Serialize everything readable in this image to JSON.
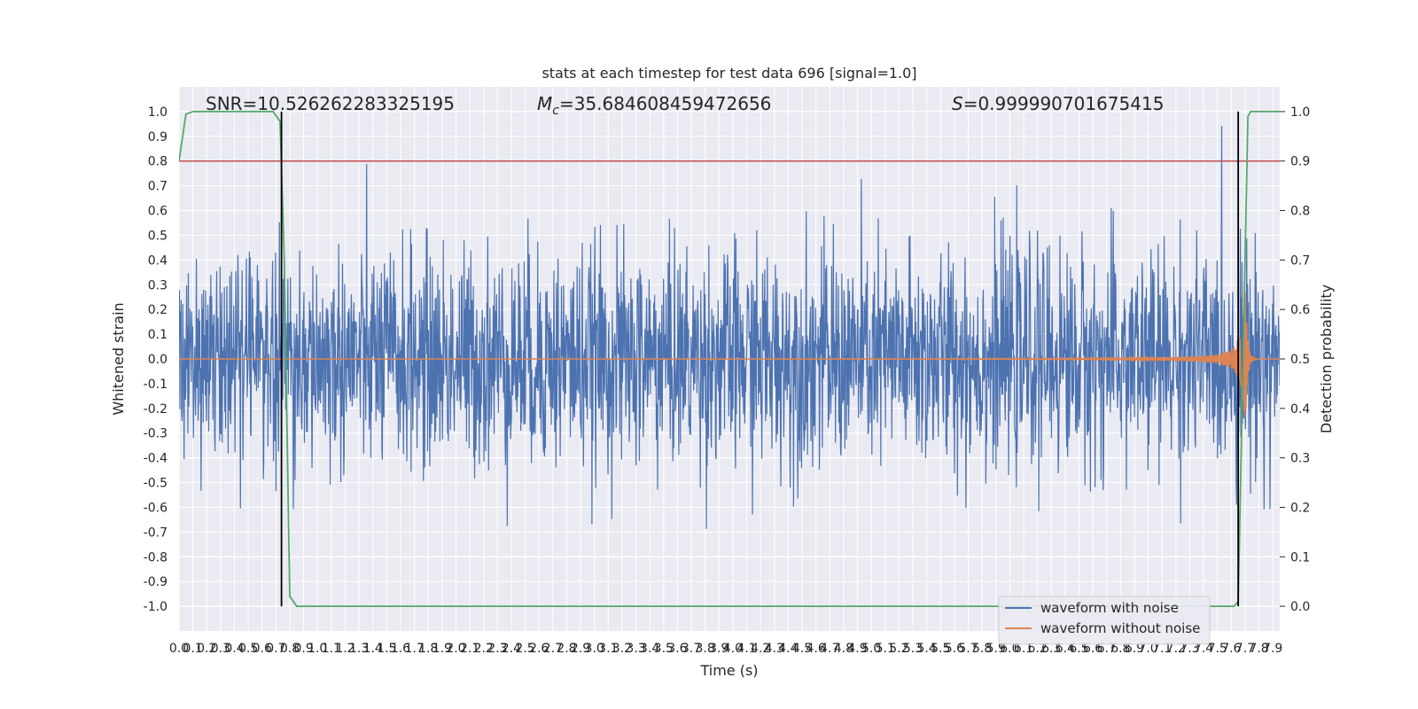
{
  "chart_data": {
    "type": "line",
    "title": "stats at each timestep for test data 696 [signal=1.0]",
    "xlabel": "Time (s)",
    "ylabel": "Whitened strain",
    "y2label": "Detection probability",
    "xlim": [
      0.0,
      7.95
    ],
    "ylim": [
      -1.1,
      1.1
    ],
    "y2lim": [
      -0.05,
      1.05
    ],
    "x_ticks": [
      "0.0",
      "0.1",
      "0.2",
      "0.3",
      "0.4",
      "0.5",
      "0.6",
      "0.7",
      "0.8",
      "0.9",
      "1.0",
      "1.1",
      "1.2",
      "1.3",
      "1.4",
      "1.5",
      "1.6",
      "1.7",
      "1.8",
      "1.9",
      "2.0",
      "2.1",
      "2.2",
      "2.3",
      "2.4",
      "2.5",
      "2.6",
      "2.7",
      "2.8",
      "2.9",
      "3.0",
      "3.1",
      "3.2",
      "3.3",
      "3.4",
      "3.5",
      "3.6",
      "3.7",
      "3.8",
      "3.9",
      "4.0",
      "4.1",
      "4.2",
      "4.3",
      "4.4",
      "4.5",
      "4.6",
      "4.7",
      "4.8",
      "4.9",
      "5.0",
      "5.1",
      "5.2",
      "5.3",
      "5.4",
      "5.5",
      "5.6",
      "5.7",
      "5.8",
      "5.9",
      "6.0",
      "6.1",
      "6.2",
      "6.3",
      "6.4",
      "6.5",
      "6.6",
      "6.7",
      "6.8",
      "6.9",
      "7.0",
      "7.1",
      "7.2",
      "7.3",
      "7.4",
      "7.5",
      "7.6",
      "7.7",
      "7.8",
      "7.9"
    ],
    "y_ticks": [
      "1.0",
      "0.9",
      "0.8",
      "0.7",
      "0.6",
      "0.5",
      "0.4",
      "0.3",
      "0.2",
      "0.1",
      "0.0",
      "-0.1",
      "-0.2",
      "-0.3",
      "-0.4",
      "-0.5",
      "-0.6",
      "-0.7",
      "-0.8",
      "-0.9",
      "-1.0"
    ],
    "y2_ticks": [
      "1.0",
      "0.9",
      "0.8",
      "0.7",
      "0.6",
      "0.5",
      "0.4",
      "0.3",
      "0.2",
      "0.1",
      "0.0"
    ],
    "annotations": [
      {
        "text": "SNR=10.526262283325195"
      },
      {
        "prefix": "M",
        "sub": "c",
        "text": "=35.684608459472656"
      },
      {
        "prefix": "S",
        "text": "=0.999990701675415"
      }
    ],
    "threshold_y2": 0.9,
    "markers_x": [
      0.74,
      7.65
    ],
    "series": [
      {
        "name": "waveform with noise",
        "color": "#4c72b0",
        "noise_amplitude": 0.22,
        "noise_peak_max": 1.0,
        "noise_peak_min": -1.0
      },
      {
        "name": "waveform without noise",
        "color": "#dd8452",
        "chirp_merger_time": 7.7,
        "chirp_peak_amplitude": 0.32
      },
      {
        "color": "#55a868",
        "probability_points": [
          [
            0.0,
            0.9
          ],
          [
            0.05,
            0.995
          ],
          [
            0.1,
            1.0
          ],
          [
            0.68,
            1.0
          ],
          [
            0.73,
            0.98
          ],
          [
            0.76,
            0.7
          ],
          [
            0.8,
            0.02
          ],
          [
            0.85,
            0.0
          ],
          [
            7.62,
            0.0
          ],
          [
            7.65,
            0.01
          ],
          [
            7.72,
            0.99
          ],
          [
            7.74,
            1.0
          ],
          [
            7.95,
            1.0
          ]
        ]
      },
      {
        "color": "#c44e52"
      }
    ],
    "legend": {
      "placement": "lower-right"
    },
    "grid": true
  }
}
